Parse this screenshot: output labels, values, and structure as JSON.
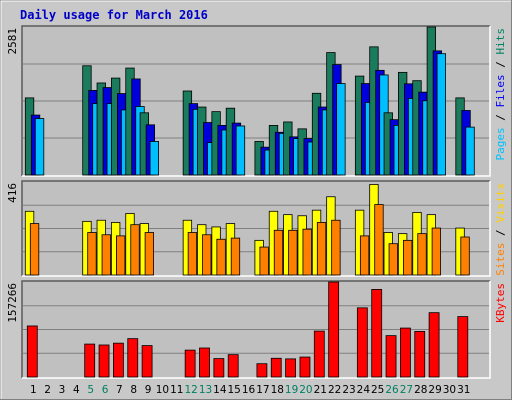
{
  "chart_data": {
    "type": "bar",
    "title": "Daily usage for March 2016",
    "categories": [
      "1",
      "2",
      "3",
      "4",
      "5",
      "6",
      "7",
      "8",
      "9",
      "10",
      "11",
      "12",
      "13",
      "14",
      "15",
      "16",
      "17",
      "18",
      "19",
      "20",
      "21",
      "22",
      "23",
      "24",
      "25",
      "26",
      "27",
      "28",
      "29",
      "30",
      "31"
    ],
    "weekend_days": [
      "5",
      "6",
      "12",
      "13",
      "19",
      "20",
      "26",
      "27"
    ],
    "panels": [
      {
        "name": "hits",
        "max_label": "2581",
        "ymax": 2581,
        "legend": [
          {
            "text": "Pages",
            "color": "#00c0ff"
          },
          {
            "text": " / ",
            "color": "#000000"
          },
          {
            "text": "Files",
            "color": "#0000ff"
          },
          {
            "text": " / ",
            "color": "#000000"
          },
          {
            "text": "Hits",
            "color": "#008060"
          }
        ],
        "series": [
          {
            "name": "Hits",
            "color": "#1a7c5c",
            "values": [
              1345,
              null,
              null,
              null,
              1905,
              1605,
              1690,
              1865,
              1085,
              null,
              null,
              1465,
              1185,
              1105,
              1165,
              null,
              585,
              865,
              925,
              805,
              1425,
              2135,
              null,
              1725,
              2235,
              1085,
              1790,
              1645,
              2581,
              null,
              1345
            ]
          },
          {
            "name": "Files",
            "color": "#0000dd",
            "values": [
              1045,
              null,
              null,
              null,
              1475,
              1525,
              1420,
              1675,
              875,
              null,
              null,
              1245,
              915,
              865,
              905,
              null,
              485,
              745,
              665,
              635,
              1185,
              1925,
              null,
              1595,
              1825,
              965,
              1590,
              1445,
              2165,
              null,
              1125
            ]
          },
          {
            "name": "Pages",
            "color": "#00bfff",
            "values": [
              985,
              null,
              null,
              null,
              1245,
              1245,
              1135,
              1195,
              585,
              null,
              null,
              1145,
              565,
              785,
              855,
              null,
              435,
              725,
              635,
              575,
              1135,
              1595,
              null,
              1265,
              1745,
              865,
              1335,
              1295,
              2115,
              null,
              835
            ]
          }
        ]
      },
      {
        "name": "visits",
        "max_label": "416",
        "ymax": 416,
        "legend": [
          {
            "text": "Sites",
            "color": "#ff8000"
          },
          {
            "text": " / ",
            "color": "#000000"
          },
          {
            "text": "Visits",
            "color": "#ffd000"
          }
        ],
        "series": [
          {
            "name": "Visits",
            "color": "#ffff00",
            "values": [
              285,
              null,
              null,
              null,
              240,
              245,
              235,
              275,
              230,
              null,
              null,
              245,
              225,
              215,
              230,
              null,
              155,
              285,
              270,
              265,
              290,
              350,
              null,
              290,
              405,
              190,
              185,
              280,
              270,
              null,
              210
            ]
          },
          {
            "name": "Sites",
            "color": "#ff8000",
            "values": [
              230,
              null,
              null,
              null,
              190,
              180,
              175,
              225,
              190,
              null,
              null,
              190,
              180,
              160,
              165,
              null,
              125,
              200,
              200,
              205,
              235,
              245,
              null,
              175,
              315,
              140,
              155,
              185,
              210,
              null,
              170
            ]
          }
        ]
      },
      {
        "name": "kbytes",
        "max_label": "157266",
        "ymax": 157266,
        "legend": [
          {
            "text": "KBytes",
            "color": "#ff0000"
          }
        ],
        "series": [
          {
            "name": "KBytes",
            "color": "#ff0000",
            "values": [
              84500,
              null,
              null,
              null,
              54500,
              53000,
              56000,
              63500,
              52000,
              null,
              null,
              44500,
              48000,
              30500,
              37000,
              null,
              22000,
              31000,
              30000,
              33000,
              76000,
              157266,
              null,
              114500,
              145000,
              68500,
              81000,
              75500,
              106500,
              null,
              100000
            ]
          }
        ]
      }
    ]
  }
}
